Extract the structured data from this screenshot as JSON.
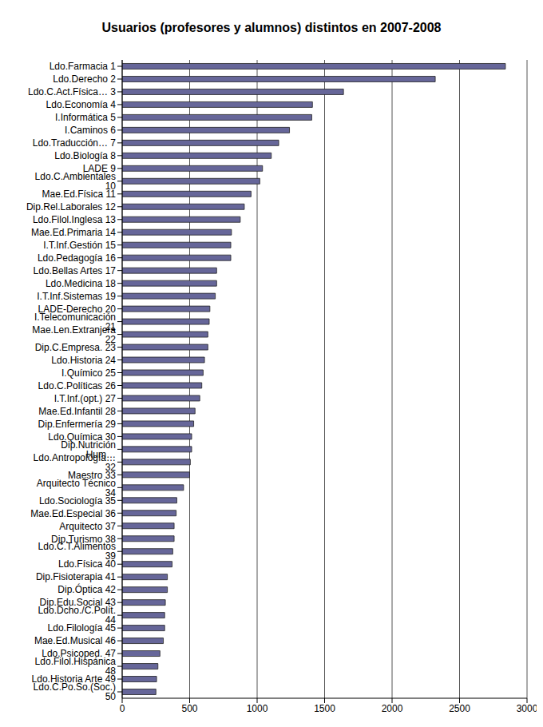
{
  "chart_data": {
    "type": "bar",
    "title": "Usuarios (profesores y alumnos) distintos en 2007-2008",
    "orientation": "horizontal",
    "categories": [
      "Ldo.Farmacia  1",
      "Ldo.Derecho  2",
      "Ldo.C.Act.Física… 3",
      "Ldo.Economía  4",
      "I.Informática  5",
      "I.Caminos  6",
      "Ldo.Traducción… 7",
      "Ldo.Biología  8",
      "LADE  9",
      "Ldo.C.Ambientales 10",
      "Mae.Ed.Física 11",
      "Dip.Rel.Laborales 12",
      "Ldo.Filol.Inglesa 13",
      "Mae.Ed.Primaria 14",
      "I.T.Inf.Gestión 15",
      "Ldo.Pedagogía 16",
      "Ldo.Bellas Artes 17",
      "Ldo.Medicina 18",
      "I.T.Inf.Sistemas 19",
      "LADE-Derecho 20",
      "I.Telecomunicación 21",
      "Mae.Len.Extranjera 22",
      "Dip.C.Empresa. 23",
      "Ldo.Historia 24",
      "I.Químico 25",
      "Ldo.C.Políticas 26",
      "I.T.Inf.(opt.) 27",
      "Mae.Ed.Infantil 28",
      "Dip.Enfermería 29",
      "Ldo.Química 30",
      "Dip.Nutrición Hum…",
      "Ldo.Antropología… 32",
      "Maestro 33",
      "Arquitecto Técnico 34",
      "Ldo.Sociología 35",
      "Mae.Ed.Especial 36",
      "Arquitecto 37",
      "Dip.Turismo 38",
      "Ldo.C.T.Alimentos 39",
      "Ldo.Física 40",
      "Dip.Fisioterapia 41",
      "Dip.Óptica 42",
      "Dip.Edu.Social 43",
      "Ldo.Dcho./C.Polít. 44",
      "Ldo.Filología 45",
      "Mae.Ed.Musical 46",
      "Ldo.Psicoped. 47",
      "Ldo.Filol.Hispánica 48",
      "Ldo.Historia Arte 49",
      "Ldo.C.Po.So.(Soc.) 50"
    ],
    "values": [
      2840,
      2320,
      1640,
      1410,
      1405,
      1240,
      1160,
      1105,
      1040,
      1020,
      955,
      905,
      875,
      810,
      805,
      805,
      700,
      700,
      690,
      650,
      645,
      635,
      635,
      610,
      600,
      590,
      575,
      540,
      530,
      515,
      515,
      505,
      500,
      455,
      405,
      400,
      385,
      385,
      375,
      370,
      335,
      335,
      320,
      315,
      315,
      305,
      280,
      265,
      255,
      250
    ],
    "color": "#666699",
    "xlim": [
      0,
      3000
    ],
    "xticks": [
      0,
      500,
      1000,
      1500,
      2000,
      2500,
      3000
    ],
    "grid": true
  }
}
